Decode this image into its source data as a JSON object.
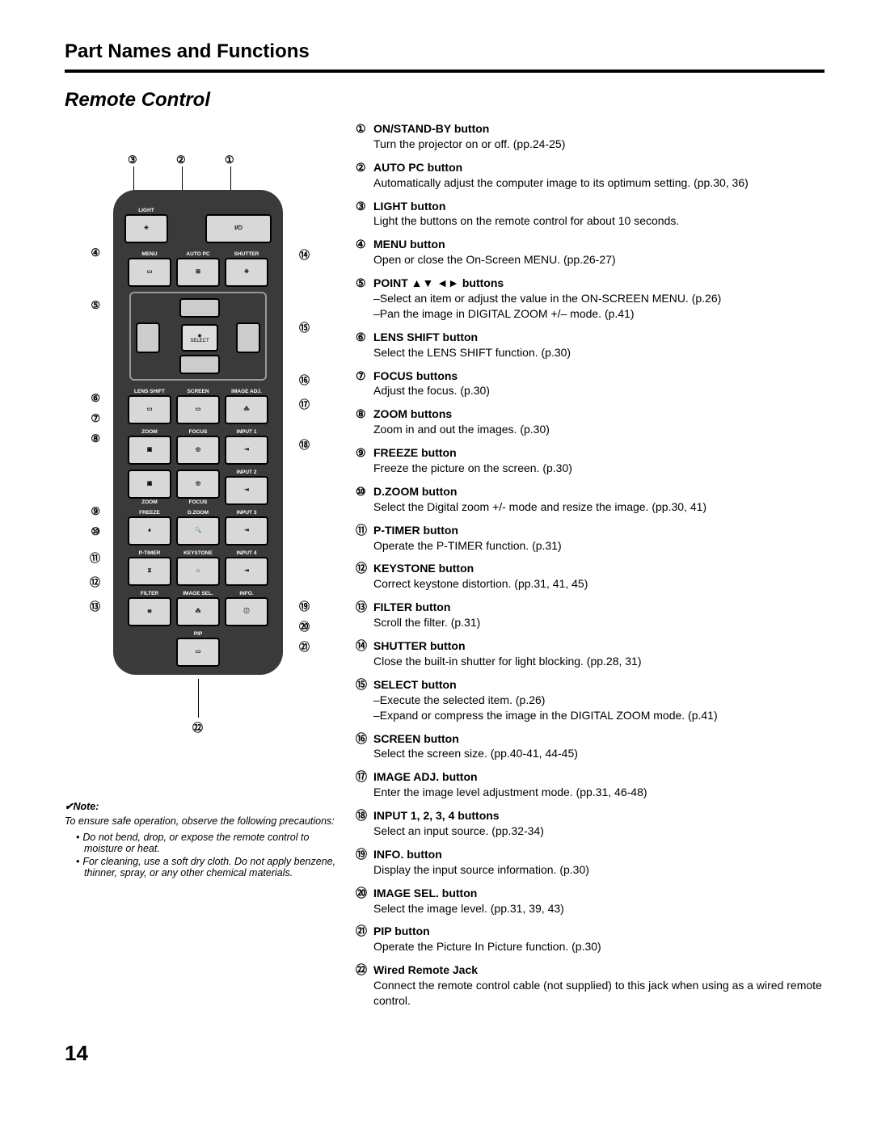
{
  "header": "Part Names and Functions",
  "section": "Remote Control",
  "pageNumber": "14",
  "note": {
    "heading": "✔Note:",
    "intro": "To ensure safe operation, observe the following precautions:",
    "bullets": [
      "Do not bend, drop, or expose the remote control to moisture or heat.",
      "For cleaning, use a soft dry cloth. Do not apply benzene, thinner, spray, or any other chemical materials."
    ]
  },
  "remote": {
    "topRow": {
      "light": "LIGHT",
      "power": "I/⏻"
    },
    "row2": {
      "menu": "MENU",
      "autopc": "AUTO PC",
      "shutter": "SHUTTER"
    },
    "select": "SELECT",
    "row3": {
      "lensshift": "LENS SHIFT",
      "screen": "SCREEN",
      "imageadj": "IMAGE ADJ."
    },
    "row4": {
      "zoom": "ZOOM",
      "focus": "FOCUS",
      "input1": "INPUT 1"
    },
    "row5": {
      "zoom": "ZOOM",
      "focus": "FOCUS",
      "input2": "INPUT 2"
    },
    "row6": {
      "freeze": "FREEZE",
      "dzoom": "D.ZOOM",
      "input3": "INPUT 3"
    },
    "row7": {
      "ptimer": "P-TIMER",
      "keystone": "KEYSTONE",
      "input4": "INPUT 4"
    },
    "row8": {
      "filter": "FILTER",
      "imagesel": "IMAGE SEL.",
      "info": "INFO."
    },
    "row9": {
      "pip": "PIP"
    }
  },
  "items": [
    {
      "num": "①",
      "title": "ON/STAND-BY button",
      "desc": "Turn the projector on or off. (pp.24-25)"
    },
    {
      "num": "②",
      "title": "AUTO PC button",
      "desc": "Automatically adjust the computer image to its optimum setting. (pp.30, 36)"
    },
    {
      "num": "③",
      "title": "LIGHT button",
      "desc": "Light the buttons on the remote control for about 10 seconds."
    },
    {
      "num": "④",
      "title": "MENU button",
      "desc": "Open or close the On-Screen MENU. (pp.26-27)"
    },
    {
      "num": "⑤",
      "title": "POINT ▲▼ ◄► buttons",
      "desc": "–Select an item or adjust the value in the ON-SCREEN MENU. (p.26)\n–Pan the image in DIGITAL ZOOM +/– mode. (p.41)"
    },
    {
      "num": "⑥",
      "title": "LENS SHIFT button",
      "desc": "Select the LENS SHIFT function. (p.30)"
    },
    {
      "num": "⑦",
      "title": "FOCUS buttons",
      "desc": "Adjust the focus. (p.30)"
    },
    {
      "num": "⑧",
      "title": "ZOOM buttons",
      "desc": "Zoom in and out the images. (p.30)"
    },
    {
      "num": "⑨",
      "title": "FREEZE button",
      "desc": "Freeze the picture on the screen. (p.30)"
    },
    {
      "num": "⑩",
      "title": "D.ZOOM button",
      "desc": "Select the Digital zoom +/- mode and resize the image. (pp.30, 41)"
    },
    {
      "num": "⑪",
      "title": "P-TIMER button",
      "desc": "Operate the P-TIMER function. (p.31)"
    },
    {
      "num": "⑫",
      "title": "KEYSTONE button",
      "desc": "Correct keystone distortion. (pp.31, 41, 45)"
    },
    {
      "num": "⑬",
      "title": "FILTER button",
      "desc": " Scroll the filter. (p.31)"
    },
    {
      "num": "⑭",
      "title": "SHUTTER button",
      "desc": "Close the built-in shutter for light blocking. (pp.28, 31)"
    },
    {
      "num": "⑮",
      "title": "SELECT button",
      "desc": "–Execute the selected item. (p.26)\n–Expand or compress the image in the DIGITAL ZOOM mode. (p.41)"
    },
    {
      "num": "⑯",
      "title": "SCREEN button",
      "desc": "Select the screen size. (pp.40-41, 44-45)"
    },
    {
      "num": "⑰",
      "title": "IMAGE ADJ. button",
      "desc": "Enter the image level adjustment mode. (pp.31, 46-48)"
    },
    {
      "num": "⑱",
      "title": "INPUT 1, 2, 3, 4 buttons",
      "desc": "Select an input source. (pp.32-34)"
    },
    {
      "num": "⑲",
      "title": "INFO. button",
      "desc": "Display the input source information. (p.30)"
    },
    {
      "num": "⑳",
      "title": "IMAGE SEL. button",
      "desc": "Select the image level. (pp.31, 39, 43)"
    },
    {
      "num": "㉑",
      "title": "PIP button",
      "desc": "Operate the Picture In Picture function. (p.30)"
    },
    {
      "num": "㉒",
      "title": "Wired Remote Jack",
      "desc": "Connect the remote control cable (not supplied) to this jack when using as a wired remote control."
    }
  ],
  "callouts": {
    "top": [
      "③",
      "②",
      "①"
    ],
    "left": [
      "④",
      "⑤",
      "⑥",
      "⑦",
      "⑧",
      "⑨",
      "⑩",
      "⑪",
      "⑫",
      "⑬"
    ],
    "right": [
      "⑭",
      "⑮",
      "⑯",
      "⑰",
      "⑱",
      "⑲",
      "⑳",
      "㉑"
    ],
    "bottom": "㉒"
  }
}
